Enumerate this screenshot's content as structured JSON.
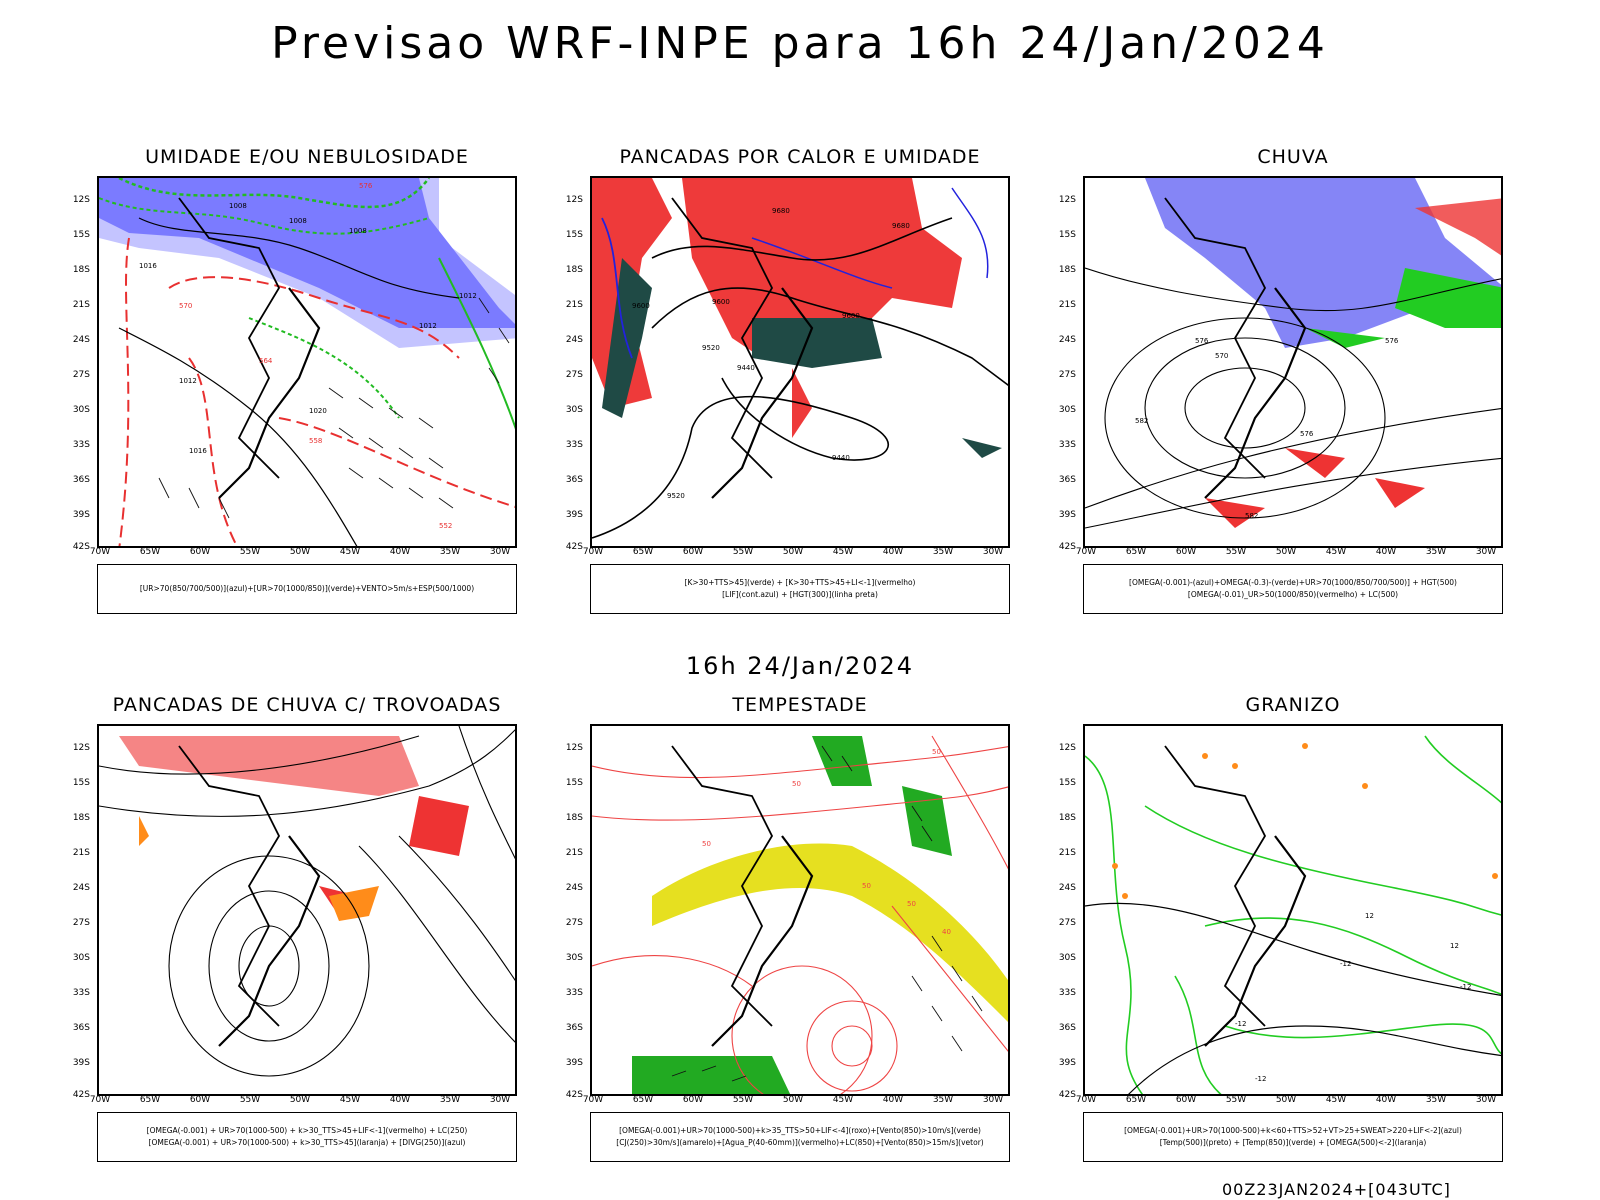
{
  "header": {
    "title": "Previsao WRF-INPE  para 16h 24/Jan/2024"
  },
  "middle": {
    "title": "16h 24/Jan/2024"
  },
  "footer": {
    "run": "00Z23JAN2024+[043UTC]"
  },
  "axes": {
    "lat_labels": [
      "12S",
      "15S",
      "18S",
      "21S",
      "24S",
      "27S",
      "30S",
      "33S",
      "36S",
      "39S",
      "42S"
    ],
    "lon_labels": [
      "70W",
      "65W",
      "60W",
      "55W",
      "50W",
      "45W",
      "40W",
      "35W",
      "30W"
    ]
  },
  "panels": [
    {
      "title": "UMIDADE E/OU NEBULOSIDADE",
      "legend": [
        "[UR>70(850/700/500)](azul)+[UR>70(1000/850)](verde)+VENTO>5m/s+ESP(500/1000)"
      ],
      "contour_labels": [
        "1008",
        "1008",
        "1008",
        "1016",
        "1012",
        "1012",
        "1012",
        "1016",
        "1020",
        "570",
        "576",
        "564",
        "558",
        "552"
      ],
      "colors": {
        "fill": "#7b7bff",
        "fill2": "#c4c4ff",
        "contour": "#e83030",
        "green": "#22bb22"
      }
    },
    {
      "title": "PANCADAS POR CALOR E UMIDADE",
      "legend": [
        "[K>30+TTS>45](verde) + [K>30+TTS>45+LI<-1](vermelho)",
        "[LIF](cont.azul) + [HGT(300)](linha preta)"
      ],
      "contour_labels": [
        "9680",
        "9680",
        "9600",
        "9600",
        "9520",
        "9440",
        "9440",
        "9520",
        "9600"
      ],
      "colors": {
        "fill": "#ee3a3a",
        "fill2": "#1f4a45",
        "contour": "#2222dd"
      }
    },
    {
      "title": "CHUVA",
      "legend": [
        "[OMEGA(-0.001)-(azul)+OMEGA(-0.3)-(verde)+UR>70(1000/850/700/500)] + HGT(500)",
        "[OMEGA(-0.01)_UR>50(1000/850)(vermelho) + LC(500)"
      ],
      "contour_labels": [
        "576",
        "576",
        "570",
        "582",
        "582",
        "576"
      ],
      "colors": {
        "blue": "#2020ee",
        "green": "#22cc22",
        "red": "#ee3333"
      }
    },
    {
      "title": "PANCADAS DE CHUVA C/ TROVOADAS",
      "legend": [
        "[OMEGA(-0.001) + UR>70(1000-500) + k>30_TTS>45+LIF<-1](vermelho) + LC(250)",
        "[OMEGA(-0.001) + UR>70(1000-500) + k>30_TTS>45](laranja) + [DIVG(250)](azul)"
      ],
      "contour_labels": [],
      "colors": {
        "red": "#ee3333",
        "orange": "#ff8c1a"
      }
    },
    {
      "title": "TEMPESTADE",
      "legend": [
        "[OMEGA(-0.001)+UR>70(1000-500)+k>35_TTS>50+LIF<-4](roxo)+[Vento(850)>10m/s](verde)",
        "[CJ(250)>30m/s](amarelo)+[Agua_P(40-60mm)](vermelho)+LC(850)+[Vento(850)>15m/s](vetor)"
      ],
      "contour_labels": [
        "50",
        "50",
        "50",
        "50",
        "40",
        "50"
      ],
      "colors": {
        "yellow": "#e6e020",
        "red": "#ee4444",
        "green": "#22aa22"
      }
    },
    {
      "title": "GRANIZO",
      "legend": [
        "[OMEGA(-0.001)+UR>70(1000-500)+k<60+TTS>52+VT>25+SWEAT>220+LIF<-2](azul)",
        "[Temp(500)](preto) + [Temp(850)](verde) + [OMEGA(500)<-2](laranja)"
      ],
      "contour_labels": [
        "-12",
        "-12",
        "12",
        "12",
        "-12",
        "-12"
      ],
      "colors": {
        "green": "#22cc22",
        "orange": "#ff8c1a"
      }
    }
  ]
}
